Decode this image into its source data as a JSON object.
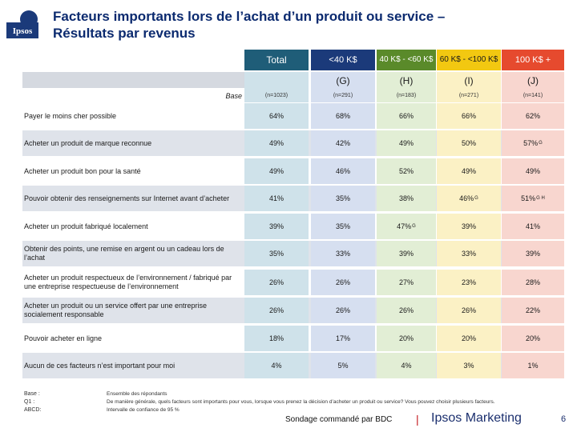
{
  "title": {
    "line1": "Facteurs importants lors de l’achat d’un produit ou service –",
    "line2": "Résultats par revenus"
  },
  "logo_text": "Ipsos",
  "columns": [
    {
      "header": "Total",
      "letter": "",
      "n": "(n=1023)"
    },
    {
      "header": "<40 K$",
      "letter": "(G)",
      "n": "(n=291)"
    },
    {
      "header": "40 K$ - <60 K$",
      "letter": "(H)",
      "n": "(n=183)"
    },
    {
      "header": "60 K$ - <100 K$",
      "letter": "(I)",
      "n": "(n=271)"
    },
    {
      "header": "100 K$ +",
      "letter": "(J)",
      "n": "(n=141)"
    }
  ],
  "base_label": "Base",
  "rows": [
    {
      "label": "Payer le moins cher possible",
      "values": [
        "64%",
        "68%",
        "66%",
        "66%",
        "62%"
      ],
      "sig": [
        "",
        "",
        "",
        "",
        ""
      ]
    },
    {
      "label": "Acheter un produit de marque reconnue",
      "values": [
        "49%",
        "42%",
        "49%",
        "50%",
        "57%"
      ],
      "sig": [
        "",
        "",
        "",
        "",
        "G"
      ]
    },
    {
      "label": "Acheter un produit bon pour la santé",
      "values": [
        "49%",
        "46%",
        "52%",
        "49%",
        "49%"
      ],
      "sig": [
        "",
        "",
        "",
        "",
        ""
      ]
    },
    {
      "label": "Pouvoir obtenir des renseignements sur Internet avant d’acheter",
      "values": [
        "41%",
        "35%",
        "38%",
        "46%",
        "51%"
      ],
      "sig": [
        "",
        "",
        "",
        "G",
        "G H"
      ]
    },
    {
      "label": "Acheter un produit fabriqué localement",
      "values": [
        "39%",
        "35%",
        "47%",
        "39%",
        "41%"
      ],
      "sig": [
        "",
        "",
        "G",
        "",
        ""
      ]
    },
    {
      "label": "Obtenir des points, une remise en argent ou un cadeau lors de l’achat",
      "values": [
        "35%",
        "33%",
        "39%",
        "33%",
        "39%"
      ],
      "sig": [
        "",
        "",
        "",
        "",
        ""
      ]
    },
    {
      "label": "Acheter un produit respectueux de l’environnement / fabriqué par une entreprise respectueuse de l’environnement",
      "values": [
        "26%",
        "26%",
        "27%",
        "23%",
        "28%"
      ],
      "sig": [
        "",
        "",
        "",
        "",
        ""
      ]
    },
    {
      "label": "Acheter un produit ou un service offert par une entreprise socialement responsable",
      "values": [
        "26%",
        "26%",
        "26%",
        "26%",
        "22%"
      ],
      "sig": [
        "",
        "",
        "",
        "",
        ""
      ]
    },
    {
      "label": "Pouvoir acheter en ligne",
      "values": [
        "18%",
        "17%",
        "20%",
        "20%",
        "20%"
      ],
      "sig": [
        "",
        "",
        "",
        "",
        ""
      ]
    },
    {
      "label": "Aucun de ces facteurs n’est important pour moi",
      "values": [
        "4%",
        "5%",
        "4%",
        "3%",
        "1%"
      ],
      "sig": [
        "",
        "",
        "",
        "",
        ""
      ]
    }
  ],
  "footer": {
    "keys": [
      "Base :",
      "Q1 :",
      "ABCD:"
    ],
    "notes": [
      "Ensemble des répondants",
      "De manière générale, quels facteurs sont importants pour vous, lorsque vous prenez la décision d’acheter un produit ou service? Vous pouvez choisir plusieurs facteurs.",
      "Intervalle de confiance de 95 %"
    ],
    "sondage": "Sondage commandé par BDC",
    "separator": "|",
    "ipsos_marketing": "Ipsos Marketing",
    "page": "6"
  },
  "colors": {
    "title": "#0b2a6f",
    "total_header": "#1f5d78",
    "g_header": "#1b3a7a",
    "h_header": "#5a8a2a",
    "i_header": "#f2c811",
    "j_header": "#e64a2e",
    "total_col": "#cfe2ea",
    "g_col": "#d6dff0",
    "h_col": "#e2eed5",
    "i_col": "#fbf1c5",
    "j_col": "#f8d6cf",
    "stripe": "#dfe3ea"
  }
}
